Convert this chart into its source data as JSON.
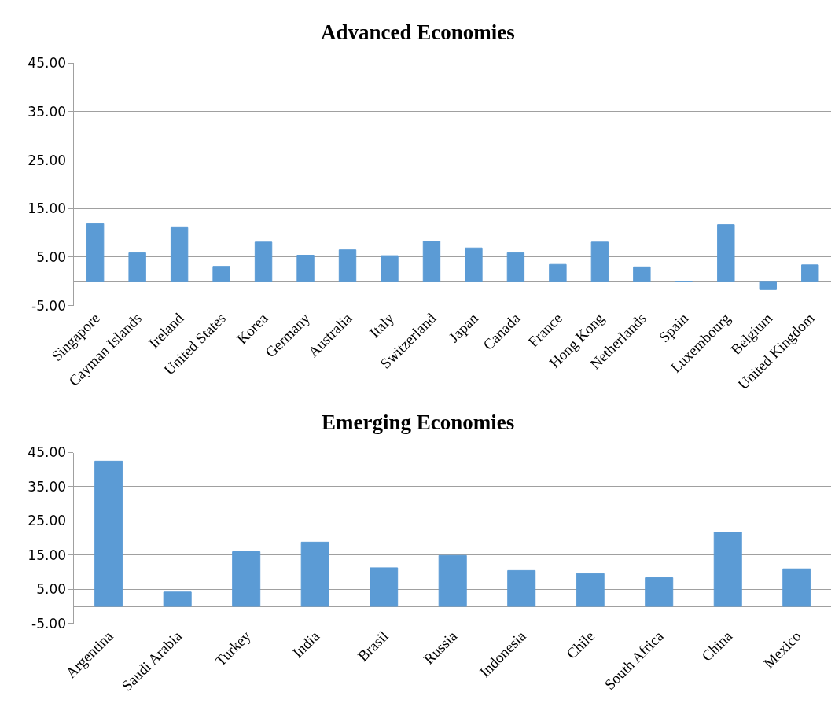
{
  "chart_data": [
    {
      "type": "bar",
      "title": "Advanced Economies",
      "categories": [
        "Singapore",
        "Cayman Islands",
        "Ireland",
        "United States",
        "Korea",
        "Germany",
        "Australia",
        "Italy",
        "Switzerland",
        "Japan",
        "Canada",
        "France",
        "Hong Kong",
        "Netherlands",
        "Spain",
        "Luxembourg",
        "Belgium",
        "United Kingdom"
      ],
      "values": [
        11.9,
        5.9,
        11.1,
        3.1,
        8.1,
        5.4,
        6.5,
        5.3,
        8.3,
        6.9,
        5.9,
        3.5,
        8.1,
        3.0,
        0,
        11.7,
        -1.7,
        3.4
      ],
      "color": "#5b9bd5",
      "ylim": [
        -5,
        45
      ],
      "yticks": [
        {
          "value": -5,
          "label": "-5.00"
        },
        {
          "value": 5,
          "label": "5.00"
        },
        {
          "value": 15,
          "label": "15.00"
        },
        {
          "value": 25,
          "label": "25.00"
        },
        {
          "value": 35,
          "label": "35.00"
        },
        {
          "value": 45,
          "label": "45.00"
        }
      ],
      "grid": "y"
    },
    {
      "type": "bar",
      "title": "Emerging Economies",
      "categories": [
        "Argentina",
        "Saudi Arabia",
        "Turkey",
        "India",
        "Brasil",
        "Russia",
        "Indonesia",
        "Chile",
        "South Africa",
        "China",
        "Mexico"
      ],
      "values": [
        42.5,
        4.2,
        16.0,
        18.8,
        11.3,
        14.9,
        10.5,
        9.6,
        8.4,
        21.7,
        11.0
      ],
      "color": "#5b9bd5",
      "ylim": [
        -5,
        45
      ],
      "yticks": [
        {
          "value": -5,
          "label": "-5.00"
        },
        {
          "value": 5,
          "label": "5.00"
        },
        {
          "value": 15,
          "label": "15.00"
        },
        {
          "value": 25,
          "label": "25.00"
        },
        {
          "value": 35,
          "label": "35.00"
        },
        {
          "value": 45,
          "label": "45.00"
        }
      ],
      "grid": "y"
    }
  ]
}
